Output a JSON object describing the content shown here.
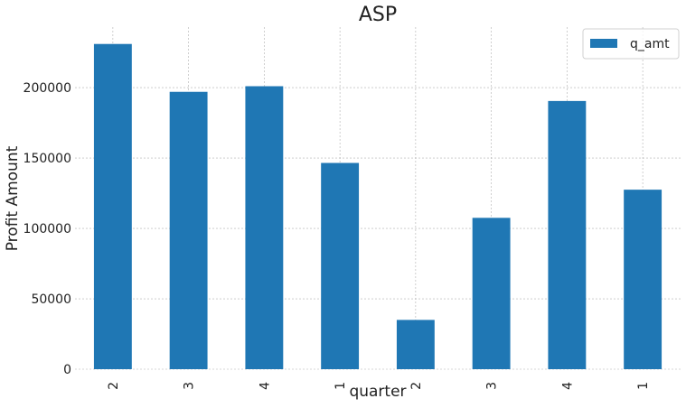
{
  "chart_data": {
    "type": "bar",
    "title": "ASP",
    "xlabel": "quarter",
    "ylabel": "Profit Amount",
    "categories": [
      "2",
      "3",
      "4",
      "1",
      "2",
      "3",
      "4",
      "1"
    ],
    "series": [
      {
        "name": "q_amt",
        "values": [
          231000,
          197000,
          201000,
          146500,
          35000,
          107500,
          190500,
          127500
        ]
      }
    ],
    "yticks": [
      0,
      50000,
      100000,
      150000,
      200000
    ],
    "ytick_labels": [
      "0",
      "50000",
      "100000",
      "150000",
      "200000"
    ],
    "ylim": [
      0,
      243000
    ],
    "grid": true,
    "legend_position": "top-right",
    "bar_color": "#1f77b4"
  }
}
